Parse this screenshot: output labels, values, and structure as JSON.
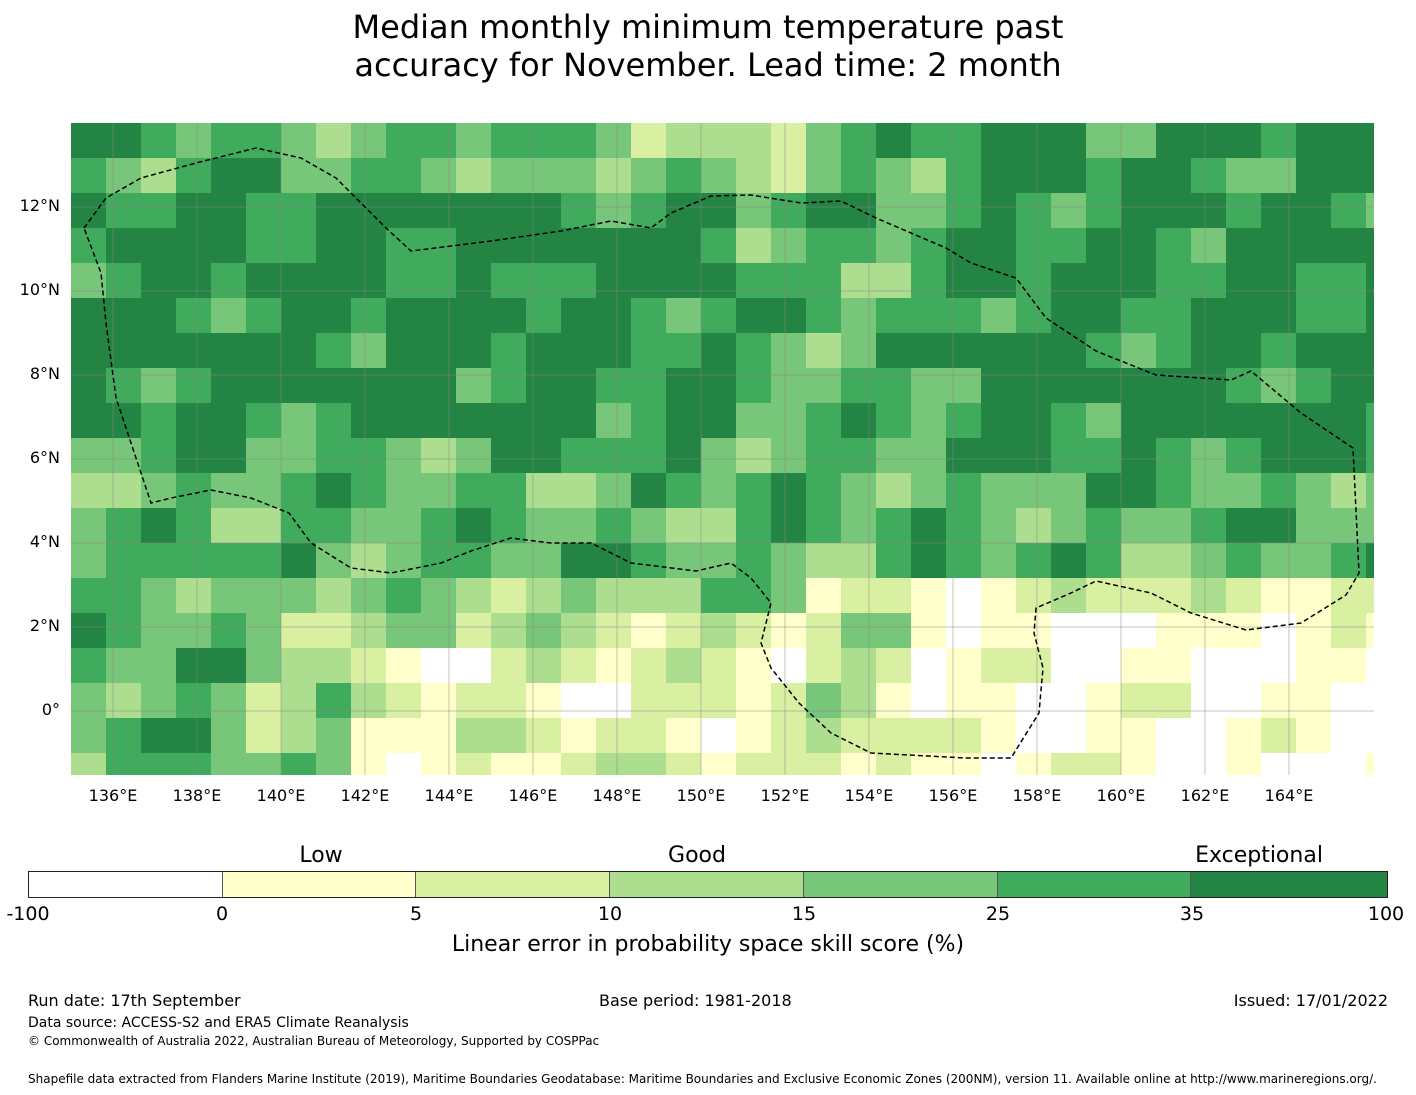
{
  "title": {
    "line1": "Median monthly minimum temperature past",
    "line2": "accuracy for November. Lead time: 2 month"
  },
  "map": {
    "x_ticks": [
      "136°E",
      "138°E",
      "140°E",
      "142°E",
      "144°E",
      "146°E",
      "148°E",
      "150°E",
      "152°E",
      "154°E",
      "156°E",
      "158°E",
      "160°E",
      "162°E",
      "164°E"
    ],
    "y_ticks": [
      "12°N",
      "10°N",
      "8°N",
      "6°N",
      "4°N",
      "2°N",
      "0°"
    ],
    "lon_range": [
      135.0,
      166.0
    ],
    "lat_range": [
      -1.5,
      14.0
    ],
    "grid_lon_step": 0.833,
    "grid_lat_step": 0.833
  },
  "colors": {
    "bins": [
      "#ffffff",
      "#ffffcc",
      "#d9f0a3",
      "#addd8e",
      "#78c679",
      "#41ab5d",
      "#238443"
    ],
    "boundary": "#000000",
    "gridline": "#888888"
  },
  "colorbar": {
    "categories": [
      "Low",
      "Good",
      "Exceptional"
    ],
    "ticks": [
      "-100",
      "0",
      "5",
      "10",
      "15",
      "25",
      "35",
      "100"
    ],
    "label": "Linear error in probability space skill score (%)"
  },
  "footer": {
    "run_date": "Run date: 17th September",
    "base_period": "Base period: 1981-2018",
    "issued": "Issued: 17/01/2022",
    "data_source": "Data source: ACCESS-S2 and ERA5 Climate Reanalysis",
    "copyright": "© Commonwealth of Australia 2022, Australian Bureau of Meteorology, Supported by COSPPac",
    "shapefile": "Shapefile data extracted from Flanders Marine Institute (2019), Maritime Boundaries Geodatabase: Maritime Boundaries and Exclusive Economic Zones (200NM), version 11. Available online at http://www.marineregions.org/."
  }
}
